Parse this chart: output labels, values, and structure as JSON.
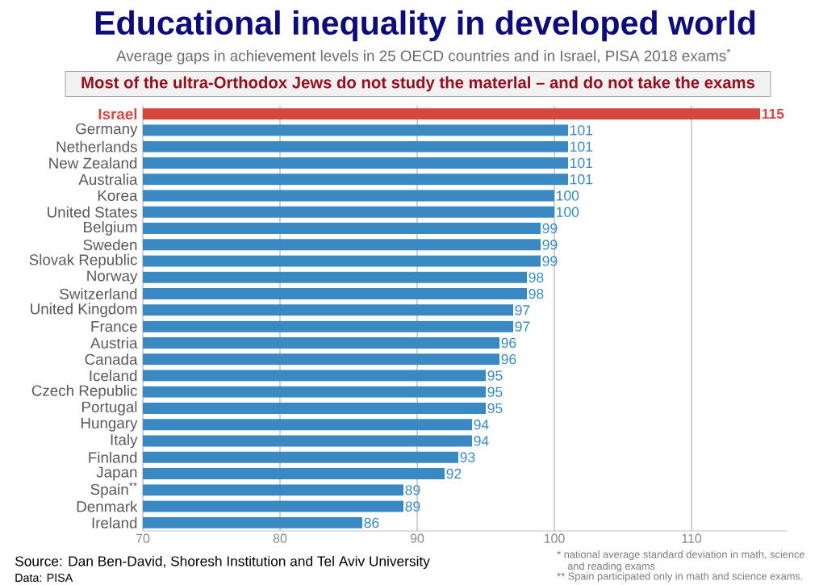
{
  "chart_data": {
    "type": "bar",
    "orientation": "horizontal",
    "title": "Educational inequality in developed world",
    "subtitle": "Average gaps in achievement levels in 25 OECD countries and in Israel, PISA 2018 exams$^{*}$",
    "categories": [
      "Israel",
      "Germany",
      "Netherlands",
      "New Zealand",
      "Australia",
      "Korea",
      "United States",
      "Belgium",
      "Sweden",
      "Slovak Republic",
      "Norway",
      "Switzerland",
      "United Kingdom",
      "France",
      "Austria",
      "Canada",
      "Iceland",
      "Czech Republic",
      "Portugal",
      "Hungary",
      "Italy",
      "Finland",
      "Japan",
      "Spain$^{**}$",
      "Denmark",
      "Ireland"
    ],
    "values": [
      115,
      101,
      101,
      101,
      101,
      100,
      100,
      99,
      99,
      99,
      98,
      98,
      97,
      97,
      96,
      96,
      95,
      95,
      95,
      94,
      94,
      93,
      92,
      89,
      89,
      86
    ],
    "colors": [
      "#d4473f",
      "#3b89c2",
      "#3b89c2",
      "#3b89c2",
      "#3b89c2",
      "#3b89c2",
      "#3b89c2",
      "#3b89c2",
      "#3b89c2",
      "#3b89c2",
      "#3b89c2",
      "#3b89c2",
      "#3b89c2",
      "#3b89c2",
      "#3b89c2",
      "#3b89c2",
      "#3b89c2",
      "#3b89c2",
      "#3b89c2",
      "#3b89c2",
      "#3b89c2",
      "#3b89c2",
      "#3b89c2",
      "#3b89c2",
      "#3b89c2",
      "#3b89c2"
    ],
    "data_labels": true,
    "xlim": [
      70,
      117
    ],
    "xticks": [
      70,
      80,
      90,
      100,
      110
    ],
    "grid": "x",
    "annotations": [
      "Most of the ultra-Orthodox Jews do not study the materlal – and do not take the exams",
      "Source: Dan Ben-David, Shoresh Institution and Tel Aviv University",
      "Data: PISA",
      "* national average standard deviation in math, science and reading exams",
      "** Spain participated only in math and science exams."
    ]
  }
}
